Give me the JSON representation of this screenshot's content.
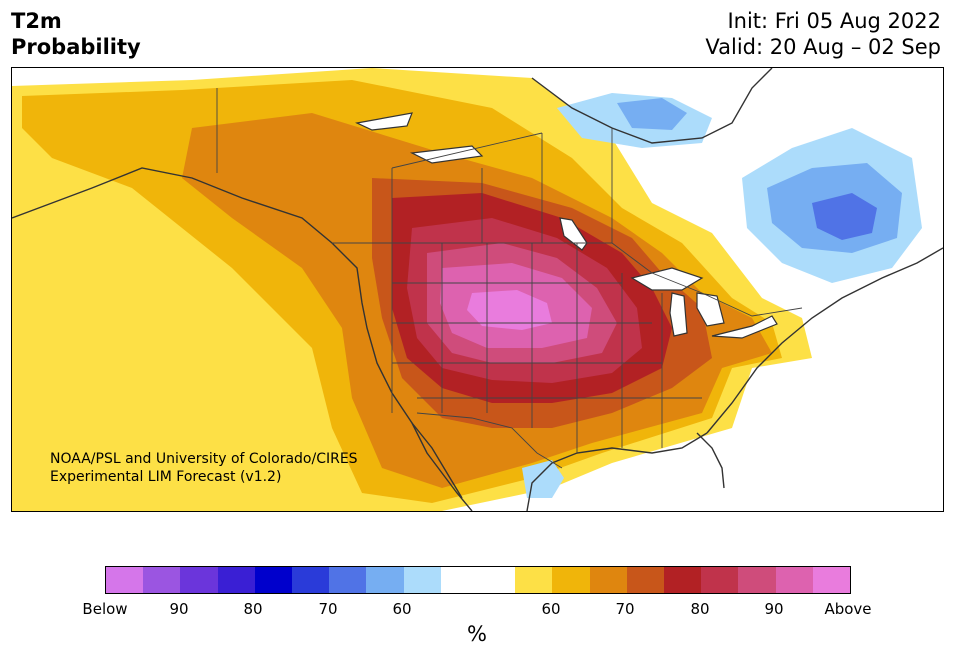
{
  "header": {
    "variable": "T2m",
    "product": "Probability",
    "init": "Init: Fri 05 Aug 2022",
    "valid": "Valid: 20 Aug – 02 Sep"
  },
  "credit": {
    "line1": "NOAA/PSL and University of Colorado/CIRES",
    "line2": "Experimental LIM Forecast (v1.2)"
  },
  "map": {
    "region": "North America",
    "hot_core": "Central US Plains",
    "cold_core": "Quebec / Labrador"
  },
  "legend": {
    "unit": "%",
    "below_colors": [
      "#d576ea",
      "#9b55e1",
      "#6b35db",
      "#3a1fd4",
      "#0000cc",
      "#2a3bd9",
      "#5073e6",
      "#76aef2",
      "#acdcfb"
    ],
    "neutral_color": "#ffffff",
    "above_colors": [
      "#fde046",
      "#f0b50a",
      "#df860f",
      "#c8561a",
      "#b22124",
      "#c0334b",
      "#cf4c7b",
      "#dd62af",
      "#e97cdd"
    ],
    "ticks": {
      "below": "Below",
      "b90": "90",
      "b80": "80",
      "b70": "70",
      "b60": "60",
      "a60": "60",
      "a70": "70",
      "a80": "80",
      "a90": "90",
      "above": "Above"
    }
  }
}
